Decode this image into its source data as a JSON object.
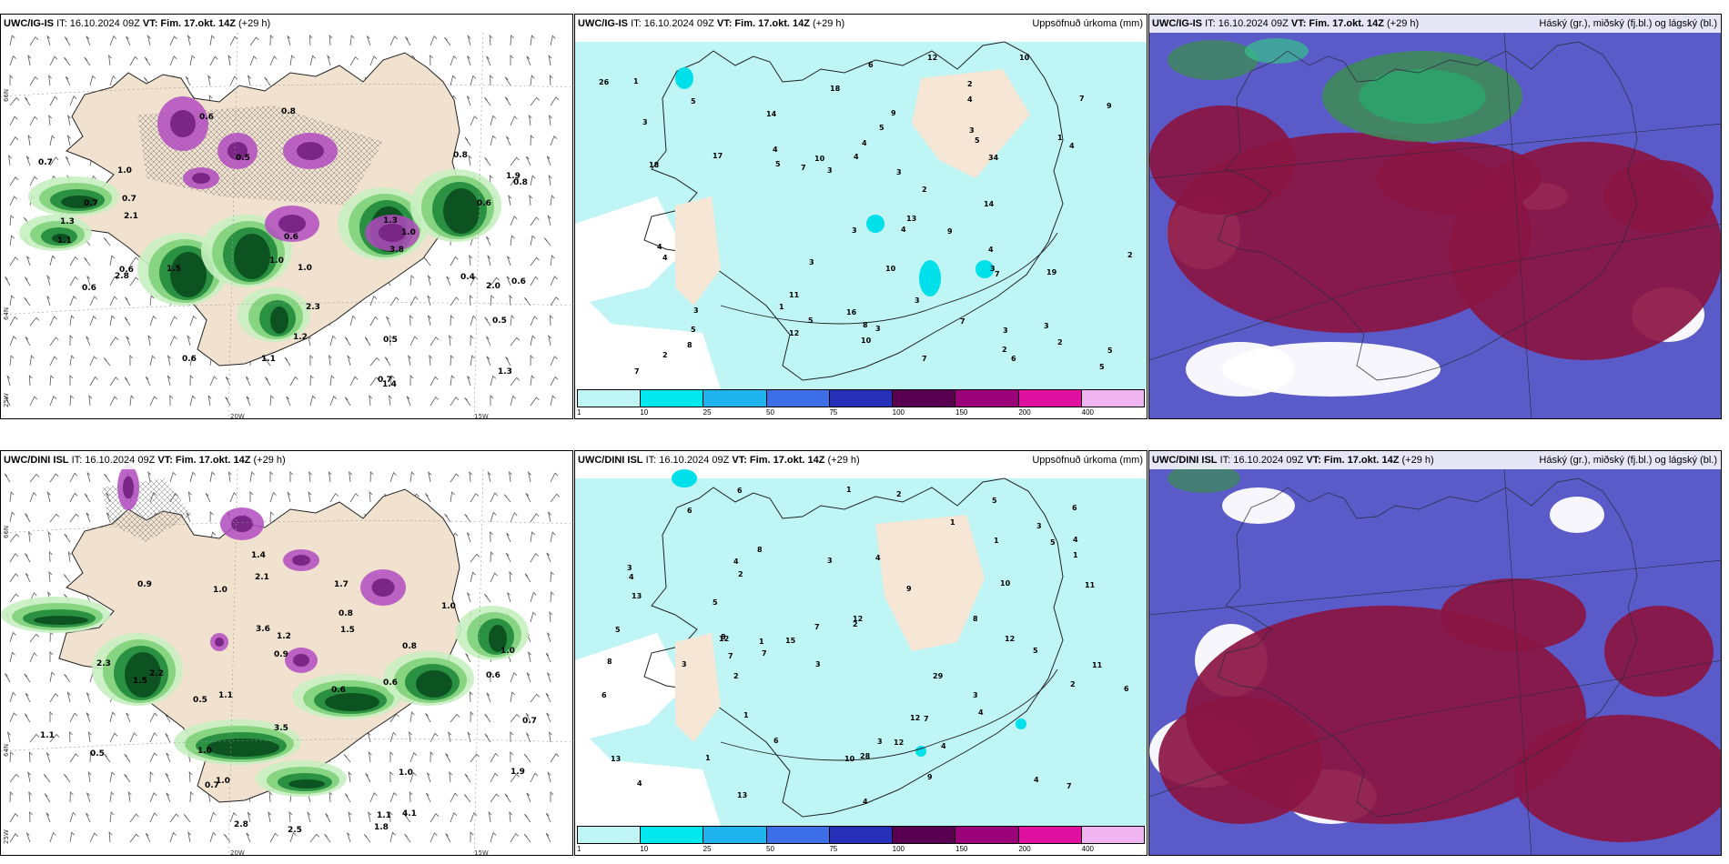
{
  "panels": [
    {
      "id": "p1",
      "model": "UWC/IG-IS",
      "it": "IT: 16.10.2024 09Z",
      "vt_label": "VT: Fim. 17.okt. 14Z",
      "lead": "(+29 h)",
      "right": ""
    },
    {
      "id": "p2",
      "model": "UWC/IG-IS",
      "it": "IT: 16.10.2024 09Z",
      "vt_label": "VT: Fim. 17.okt. 14Z",
      "lead": "(+29 h)",
      "right": "Uppsöfnuð úrkoma (mm)"
    },
    {
      "id": "p3",
      "model": "UWC/IG-IS",
      "it": "IT: 16.10.2024 09Z",
      "vt_label": "VT: Fim. 17.okt. 14Z",
      "lead": "(+29 h)",
      "right": "Háský (gr.), miðský (fj.bl.) og lágský (bl.)"
    },
    {
      "id": "p4",
      "model": "UWC/DINI ISL",
      "it": "IT: 16.10.2024 09Z",
      "vt_label": "VT: Fim. 17.okt. 14Z",
      "lead": "(+29 h)",
      "right": ""
    },
    {
      "id": "p5",
      "model": "UWC/DINI ISL",
      "it": "IT: 16.10.2024 09Z",
      "vt_label": "VT: Fim. 17.okt. 14Z",
      "lead": "(+29 h)",
      "right": "Uppsöfnuð úrkoma (mm)"
    },
    {
      "id": "p6",
      "model": "UWC/DINI ISL",
      "it": "IT: 16.10.2024 09Z",
      "vt_label": "VT: Fim. 17.okt. 14Z",
      "lead": "(+29 h)",
      "right": "Háský (gr.), miðský (fj.bl.) og lágský (bl.)"
    }
  ],
  "grid_labels": {
    "lat_66": "66N",
    "lat_64": "64N",
    "lon_25": "25W",
    "lon_20": "20W",
    "lon_15": "15W"
  },
  "colorbar": {
    "labels": [
      "1",
      "10",
      "25",
      "50",
      "75",
      "100",
      "150",
      "200",
      "400"
    ],
    "colors": [
      "#bff5f5",
      "#00e8ee",
      "#20b4ee",
      "#3c6ee8",
      "#2630b8",
      "#5a0050",
      "#9a0078",
      "#e010a0",
      "#f0b4f0"
    ]
  },
  "precip_top": [
    "2",
    "19",
    "13",
    "10",
    "18",
    "12",
    "3",
    "2",
    "3",
    "1",
    "5",
    "5",
    "5",
    "6",
    "7",
    "4",
    "3",
    "4",
    "3",
    "9",
    "26",
    "8",
    "10",
    "9",
    "7",
    "4",
    "10",
    "5",
    "4",
    "3",
    "2",
    "3",
    "9",
    "7",
    "4",
    "7",
    "8",
    "34",
    "18",
    "16",
    "17",
    "11",
    "14",
    "12",
    "14",
    "7",
    "4",
    "3",
    "2",
    "5",
    "3",
    "4",
    "1",
    "2",
    "3",
    "5",
    "1",
    "3",
    "2",
    "4",
    "3",
    "3",
    "5",
    "7",
    "6",
    "4",
    "10",
    "5"
  ],
  "precip_bottom": [
    "2",
    "2",
    "4",
    "12",
    "15",
    "29",
    "28",
    "6",
    "4",
    "7",
    "3",
    "8",
    "1",
    "4",
    "4",
    "3",
    "12",
    "11",
    "9",
    "2",
    "5",
    "2",
    "4",
    "6",
    "13",
    "12",
    "13",
    "10",
    "8",
    "3",
    "7",
    "5",
    "3",
    "12",
    "6",
    "4",
    "2",
    "8",
    "4",
    "5",
    "1",
    "3",
    "7",
    "4",
    "6",
    "6",
    "8",
    "10",
    "1",
    "5",
    "13",
    "1",
    "3",
    "7",
    "9",
    "4",
    "11",
    "12",
    "3",
    "1",
    "5",
    "1",
    "1",
    "6",
    "7"
  ],
  "wx_top": [
    "0.5",
    "0.4",
    "0.8",
    "0.6",
    "0.5",
    "0.7",
    "0.8",
    "0.6",
    "1.0",
    "1.1",
    "0.8",
    "1.3",
    "1.0",
    "1.4",
    "1.2",
    "0.7",
    "0.6",
    "0.6",
    "1.3",
    "1.3",
    "1.0",
    "0.6",
    "2.0",
    "1.5",
    "0.7",
    "0.6",
    "1.1",
    "0.6",
    "2.3",
    "2.8",
    "2.1",
    "0.7",
    "1.9",
    "1.0",
    "3.8",
    "0.5"
  ],
  "wx_bottom": [
    "0.7",
    "1.2",
    "0.6",
    "1.0",
    "0.5",
    "0.6",
    "0.8",
    "1.1",
    "0.9",
    "1.0",
    "0.7",
    "0.6",
    "1.5",
    "2.1",
    "1.0",
    "1.7",
    "2.3",
    "0.5",
    "1.1",
    "1.0",
    "1.5",
    "0.9",
    "3.5",
    "1.9",
    "2.5",
    "1.0",
    "1.8",
    "2.2",
    "1.1",
    "0.8",
    "4.1",
    "1.4",
    "3.6",
    "1.0",
    "2.8"
  ]
}
